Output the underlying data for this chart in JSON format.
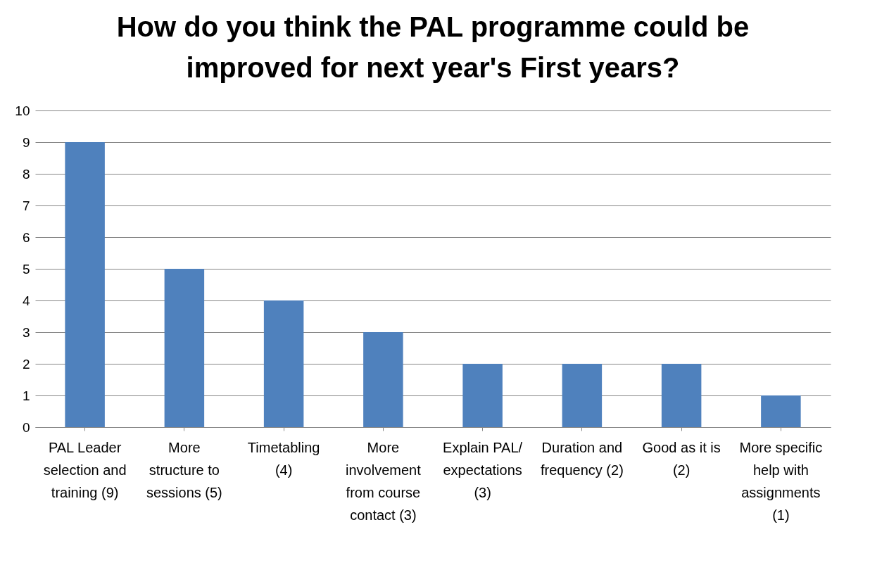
{
  "chart_data": {
    "type": "bar",
    "title": "How do you think the PAL programme could be improved for next year's First years?",
    "categories": [
      "PAL Leader selection and training (9)",
      "More structure to sessions (5)",
      "Timetabling (4)",
      "More involvement from course contact (3)",
      "Explain PAL/ expectations (3)",
      "Duration and frequency (2)",
      "Good as it is (2)",
      "More specific help with assignments (1)"
    ],
    "values": [
      9,
      5,
      4,
      3,
      2,
      2,
      2,
      1
    ],
    "color": "#4f81bd",
    "ylim": [
      0,
      10
    ],
    "yticks": [
      0,
      1,
      2,
      3,
      4,
      5,
      6,
      7,
      8,
      9,
      10
    ],
    "grid": "y"
  }
}
